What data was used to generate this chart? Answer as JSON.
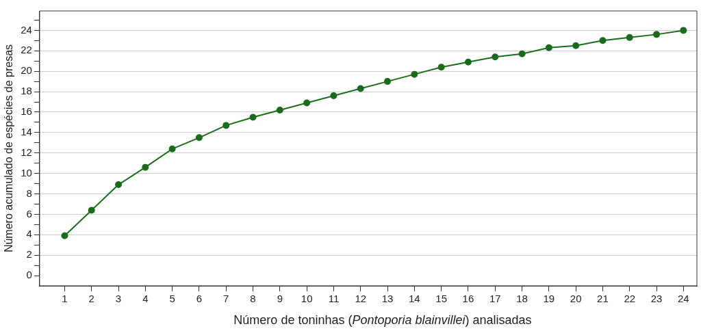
{
  "chart_data": {
    "type": "line",
    "xlabel": "Número de toninhas (*Pontoporia blainvillei*) analisadas",
    "ylabel": "Número acumulado de espécies de presas",
    "x": [
      1,
      2,
      3,
      4,
      5,
      6,
      7,
      8,
      9,
      10,
      11,
      12,
      13,
      14,
      15,
      16,
      17,
      18,
      19,
      20,
      21,
      22,
      23,
      24
    ],
    "series": [
      {
        "color": "#1a6b1a",
        "values": [
          3.9,
          6.4,
          8.9,
          10.6,
          12.4,
          13.5,
          14.7,
          15.5,
          16.2,
          16.9,
          17.6,
          18.3,
          19.0,
          19.7,
          20.4,
          20.9,
          21.4,
          21.7,
          22.3,
          22.5,
          23.0,
          23.3,
          23.6,
          24.0
        ]
      }
    ],
    "xlim": [
      0.07,
      24.5
    ],
    "xticks": [
      1,
      2,
      3,
      4,
      5,
      6,
      7,
      8,
      9,
      10,
      11,
      12,
      13,
      14,
      15,
      16,
      17,
      18,
      19,
      20,
      21,
      22,
      23,
      24
    ],
    "ylim": [
      -1,
      25.9
    ],
    "yticks": [
      0,
      {
        "value": 1,
        "label": null
      },
      2,
      {
        "value": 3,
        "label": null
      },
      4,
      {
        "value": 5,
        "label": null
      },
      6,
      {
        "value": 7,
        "label": null
      },
      8,
      {
        "value": 9,
        "label": null
      },
      10,
      {
        "value": 11,
        "label": null
      },
      12,
      {
        "value": 13,
        "label": null
      },
      14,
      {
        "value": 15,
        "label": null
      },
      16,
      {
        "value": 17,
        "label": null
      },
      18,
      {
        "value": 19,
        "label": null
      },
      20,
      {
        "value": 21,
        "label": null
      },
      22,
      {
        "value": 23,
        "label": null
      },
      24,
      {
        "value": 25,
        "label": null
      }
    ],
    "grid": "y",
    "marker": "circle",
    "line_style": "solid",
    "legend": false
  }
}
